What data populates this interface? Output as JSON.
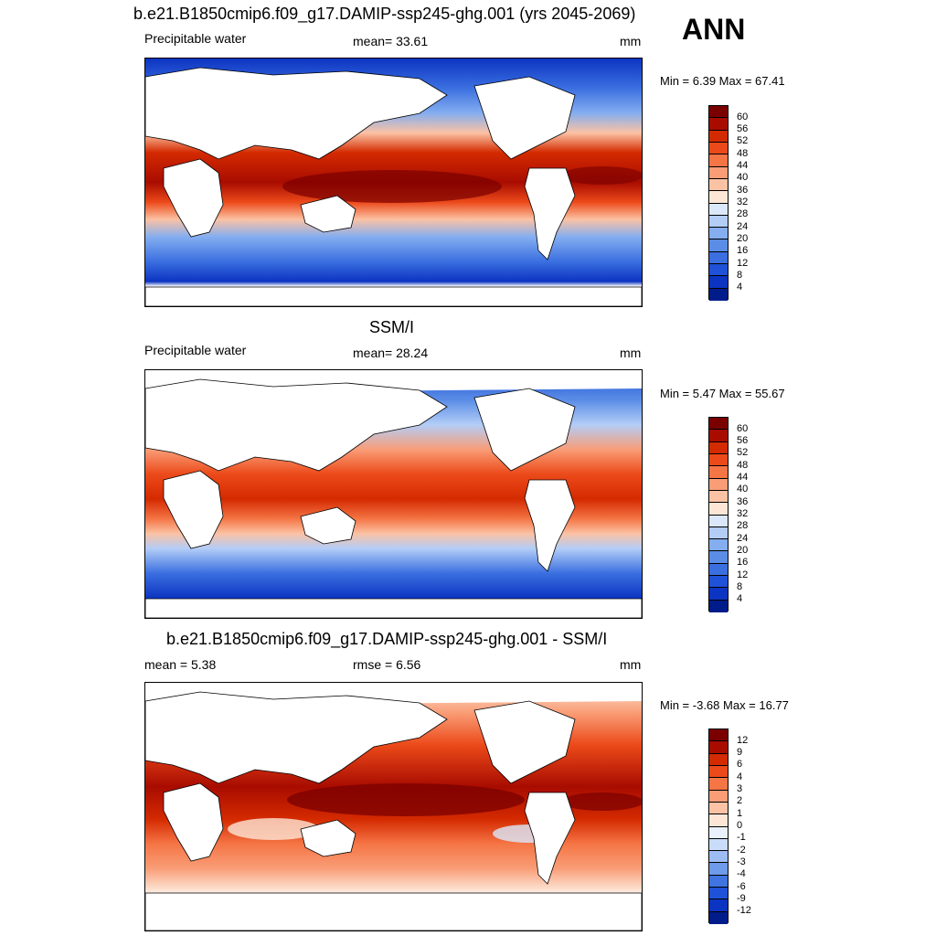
{
  "ann_label": "ANN",
  "panels": [
    {
      "title": "b.e21.B1850cmip6.f09_g17.DAMIP-ssp245-ghg.001 (yrs 2045-2069)",
      "left_label": "Precipitable water",
      "center_label": "mean=  33.61",
      "units": "mm",
      "minmax": "Min =   6.39 Max =  67.41",
      "colorbar": {
        "labels": [
          "60",
          "56",
          "52",
          "48",
          "44",
          "40",
          "36",
          "32",
          "28",
          "24",
          "20",
          "16",
          "12",
          "8",
          "4"
        ],
        "colors": [
          "#7a0000",
          "#a80c00",
          "#d42a00",
          "#ec4a1a",
          "#f57545",
          "#f99d77",
          "#fbc2a4",
          "#fde6d6",
          "#dbe8fb",
          "#b3cdf7",
          "#84aef0",
          "#5b8de6",
          "#3b6fe0",
          "#1f52d8",
          "#0c34c2",
          "#001c8a"
        ]
      }
    },
    {
      "title": "SSM/I",
      "left_label": "Precipitable water",
      "center_label": "mean=  28.24",
      "units": "mm",
      "minmax": "Min =   5.47 Max =  55.67",
      "colorbar": {
        "labels": [
          "60",
          "56",
          "52",
          "48",
          "44",
          "40",
          "36",
          "32",
          "28",
          "24",
          "20",
          "16",
          "12",
          "8",
          "4"
        ],
        "colors": [
          "#7a0000",
          "#a80c00",
          "#d42a00",
          "#ec4a1a",
          "#f57545",
          "#f99d77",
          "#fbc2a4",
          "#fde6d6",
          "#dbe8fb",
          "#b3cdf7",
          "#84aef0",
          "#5b8de6",
          "#3b6fe0",
          "#1f52d8",
          "#0c34c2",
          "#001c8a"
        ]
      }
    },
    {
      "title": "b.e21.B1850cmip6.f09_g17.DAMIP-ssp245-ghg.001 - SSM/I",
      "left_label": "mean =   5.38",
      "center_label": "rmse =   6.56",
      "units": "mm",
      "minmax": "Min =  -3.68 Max =  16.77",
      "colorbar": {
        "labels": [
          "12",
          "9",
          "6",
          "4",
          "3",
          "2",
          "1",
          "0",
          "-1",
          "-2",
          "-3",
          "-4",
          "-6",
          "-9",
          "-12"
        ],
        "colors": [
          "#7a0000",
          "#a80c00",
          "#d42a00",
          "#ec4a1a",
          "#f57545",
          "#f99d77",
          "#fbc2a4",
          "#fde6d6",
          "#eaf1fd",
          "#c9dcfa",
          "#9dbcf3",
          "#6e9bea",
          "#3f74e1",
          "#1f52d8",
          "#0c34c2",
          "#001c8a"
        ]
      }
    }
  ]
}
